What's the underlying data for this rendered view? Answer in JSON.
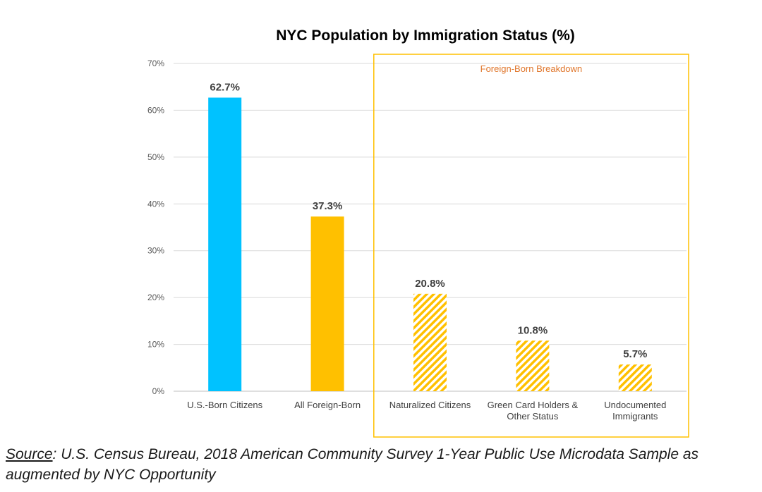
{
  "chart_data": {
    "type": "bar",
    "title": "NYC Population by Immigration Status (%)",
    "xlabel": "",
    "ylabel": "",
    "ylim": [
      0,
      70
    ],
    "yticks": [
      {
        "value": 0,
        "label": "0%"
      },
      {
        "value": 10,
        "label": "10%"
      },
      {
        "value": 20,
        "label": "20%"
      },
      {
        "value": 30,
        "label": "30%"
      },
      {
        "value": 40,
        "label": "40%"
      },
      {
        "value": 50,
        "label": "50%"
      },
      {
        "value": 60,
        "label": "60%"
      },
      {
        "value": 70,
        "label": "70%"
      }
    ],
    "grid": true,
    "categories": [
      [
        "U.S.-Born Citizens"
      ],
      [
        "All Foreign-Born"
      ],
      [
        "Naturalized Citizens"
      ],
      [
        "Green Card Holders &",
        "Other Status"
      ],
      [
        "Undocumented",
        "Immigrants"
      ]
    ],
    "values": [
      62.7,
      37.3,
      20.8,
      10.8,
      5.7
    ],
    "value_labels": [
      "62.7%",
      "37.3%",
      "20.8%",
      "10.8%",
      "5.7%"
    ],
    "bar_styles": [
      "solid",
      "solid",
      "hatched",
      "hatched",
      "hatched"
    ],
    "bar_colors": [
      "#00c2ff",
      "#ffc000",
      "#ffc000",
      "#ffc000",
      "#ffc000"
    ],
    "annotation": {
      "text": "Foreign-Born Breakdown",
      "spans_categories": [
        2,
        4
      ],
      "box_color": "#ffc000",
      "text_color": "#e0762b"
    }
  },
  "source": {
    "label": "Source",
    "text": ": U.S. Census Bureau, 2018 American Community Survey 1-Year Public Use Microdata Sample as augmented by NYC Opportunity"
  }
}
